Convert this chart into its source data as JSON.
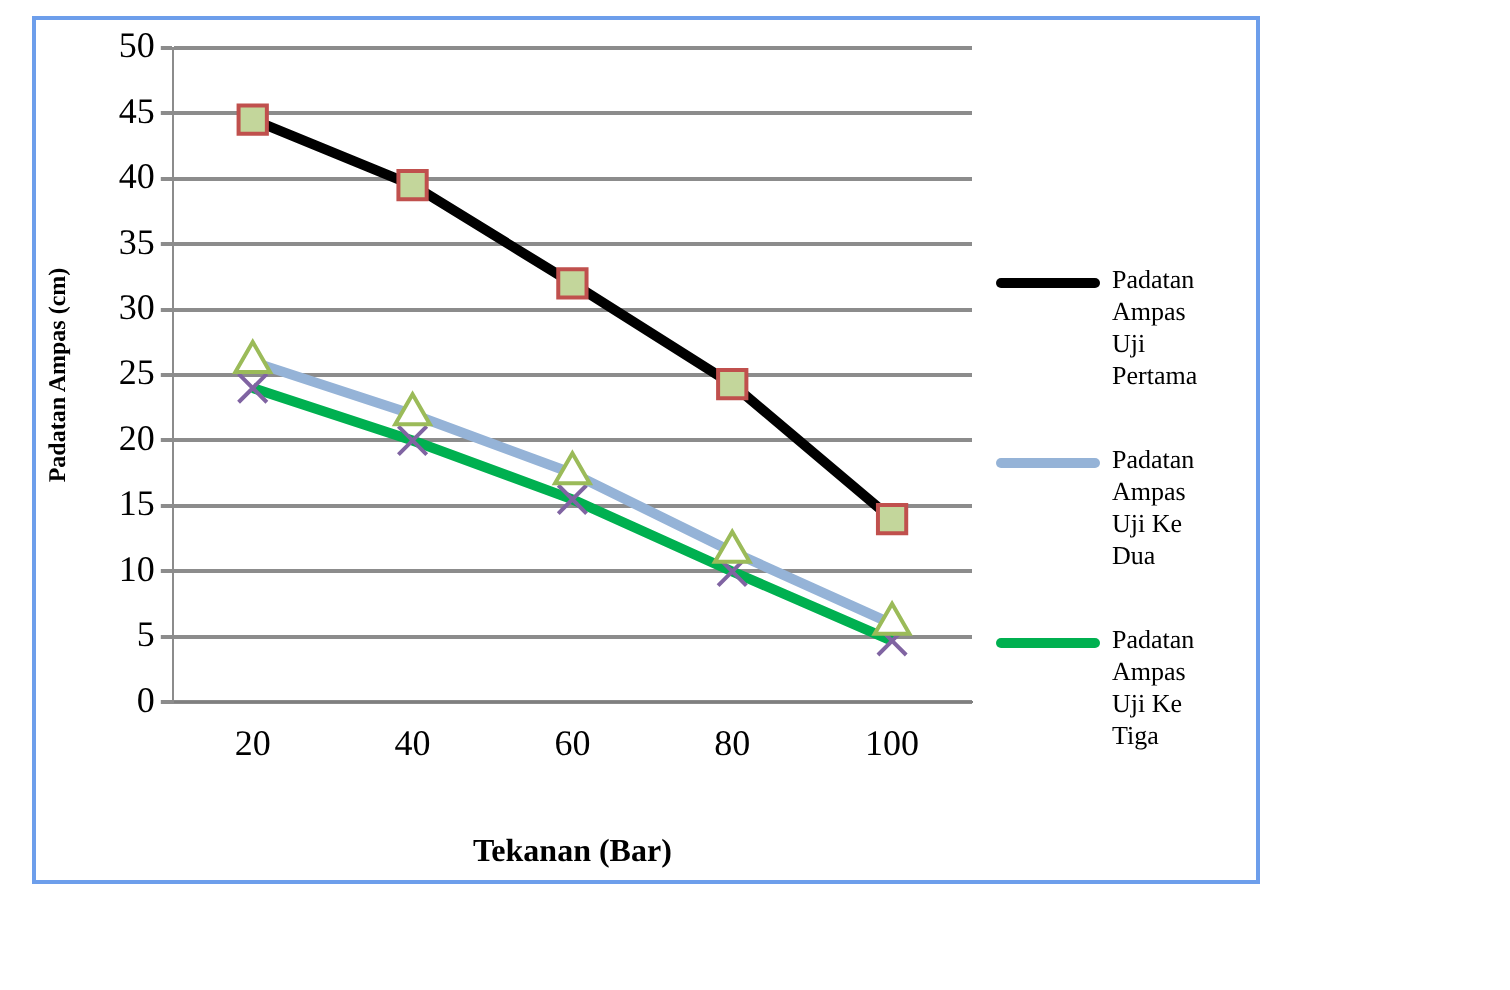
{
  "chart_data": {
    "type": "line",
    "xlabel": "Tekanan (Bar)",
    "ylabel": "Padatan Ampas (cm)",
    "categories": [
      "20",
      "40",
      "60",
      "80",
      "100"
    ],
    "series": [
      {
        "name": "Padatan Ampas Uji Pertama",
        "color": "#000000",
        "marker": "square",
        "values": [
          44.5,
          39.5,
          32,
          24.3,
          14
        ]
      },
      {
        "name": "Padatan Ampas Uji Ke Dua",
        "color": "#95b3d7",
        "marker": "triangle",
        "values": [
          26,
          22,
          17.5,
          11.5,
          6
        ]
      },
      {
        "name": "Padatan Ampas Uji Ke Tiga",
        "color": "#00b050",
        "marker": "cross",
        "values": [
          24,
          20,
          15.5,
          10,
          4.7
        ]
      }
    ],
    "ylim": [
      0,
      50
    ],
    "yticks": [
      0,
      5,
      10,
      15,
      20,
      25,
      30,
      35,
      40,
      45,
      50
    ],
    "grid": "y",
    "legend": "right"
  }
}
